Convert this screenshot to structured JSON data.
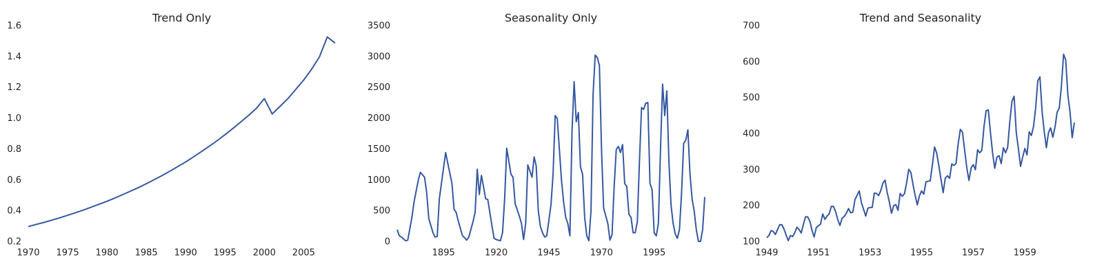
{
  "chart_data": [
    {
      "type": "line",
      "title": "Trend Only",
      "x": [
        1970,
        1971,
        1972,
        1973,
        1974,
        1975,
        1976,
        1977,
        1978,
        1979,
        1980,
        1981,
        1982,
        1983,
        1984,
        1985,
        1986,
        1987,
        1988,
        1989,
        1990,
        1991,
        1992,
        1993,
        1994,
        1995,
        1996,
        1997,
        1998,
        1999,
        2000,
        2001,
        2002,
        2003,
        2004,
        2005,
        2006,
        2007,
        2008,
        2009
      ],
      "values": [
        0.3,
        0.314,
        0.327,
        0.342,
        0.357,
        0.373,
        0.39,
        0.407,
        0.426,
        0.445,
        0.464,
        0.485,
        0.507,
        0.53,
        0.553,
        0.578,
        0.604,
        0.631,
        0.659,
        0.689,
        0.719,
        0.752,
        0.786,
        0.821,
        0.857,
        0.896,
        0.936,
        0.978,
        1.021,
        1.067,
        1.13,
        1.03,
        1.08,
        1.13,
        1.19,
        1.25,
        1.32,
        1.4,
        1.53,
        1.49
      ],
      "color": "#3557a0",
      "xlim": [
        1970,
        2009
      ],
      "xticks": [
        1970,
        1975,
        1980,
        1985,
        1990,
        1995,
        2000,
        2005
      ],
      "ylim": [
        0.2,
        1.6
      ],
      "yticks": [
        0.2,
        0.4,
        0.6,
        0.8,
        {
          "value": 1,
          "label": "1.0"
        },
        1.2,
        1.4,
        1.6
      ]
    },
    {
      "type": "line",
      "title": "Seasonality Only",
      "x": [
        1873,
        1874,
        1875,
        1877,
        1878,
        1880,
        1881,
        1883,
        1884,
        1886,
        1887,
        1888,
        1890,
        1891,
        1892,
        1893,
        1895,
        1896,
        1897,
        1899,
        1900,
        1901,
        1902,
        1904,
        1905,
        1906,
        1907,
        1909,
        1910,
        1911,
        1912,
        1913,
        1915,
        1916,
        1918,
        1919,
        1920,
        1922,
        1923,
        1924,
        1925,
        1927,
        1928,
        1929,
        1931,
        1932,
        1933,
        1934,
        1935,
        1937,
        1938,
        1939,
        1940,
        1941,
        1942,
        1943,
        1944,
        1946,
        1947,
        1948,
        1949,
        1950,
        1951,
        1952,
        1953,
        1954,
        1955,
        1956,
        1957,
        1958,
        1959,
        1960,
        1961,
        1962,
        1963,
        1964,
        1965,
        1966,
        1967,
        1968,
        1969,
        1970,
        1971,
        1973,
        1974,
        1975,
        1976,
        1977,
        1978,
        1979,
        1980,
        1981,
        1982,
        1983,
        1984,
        1985,
        1986,
        1987,
        1988,
        1989,
        1990,
        1991,
        1992,
        1993,
        1994,
        1995,
        1996,
        1997,
        1998,
        1999,
        2000,
        2001,
        2002,
        2003,
        2004,
        2005,
        2006,
        2007,
        2008,
        2009,
        2010,
        2011,
        2012,
        2013,
        2014,
        2015,
        2016,
        2017,
        2018,
        2019
      ],
      "values": [
        200,
        100,
        80,
        20,
        30,
        400,
        650,
        1000,
        1130,
        1050,
        800,
        380,
        150,
        80,
        90,
        700,
        1200,
        1450,
        1280,
        950,
        530,
        480,
        340,
        100,
        70,
        30,
        80,
        330,
        480,
        1180,
        770,
        1080,
        700,
        690,
        260,
        60,
        40,
        20,
        150,
        690,
        1520,
        1100,
        1050,
        620,
        420,
        300,
        40,
        300,
        1250,
        1050,
        1380,
        1230,
        500,
        250,
        150,
        80,
        100,
        600,
        1100,
        2050,
        2000,
        1500,
        1000,
        650,
        400,
        300,
        100,
        1800,
        2600,
        1950,
        2100,
        1220,
        1100,
        400,
        100,
        20,
        500,
        2400,
        3030,
        2990,
        2860,
        1500,
        550,
        300,
        30,
        120,
        900,
        1500,
        1550,
        1450,
        1580,
        950,
        900,
        450,
        400,
        150,
        150,
        330,
        1300,
        2180,
        2150,
        2250,
        2260,
        950,
        850,
        150,
        100,
        300,
        1500,
        2560,
        2050,
        2450,
        1300,
        600,
        300,
        130,
        60,
        200,
        800,
        1600,
        1650,
        1820,
        1100,
        700,
        500,
        200,
        10,
        10,
        200,
        730
      ],
      "color": "#3557a0",
      "xlim": [
        1873,
        2019
      ],
      "xticks": [
        1895,
        1920,
        1945,
        1970,
        1995
      ],
      "ylim": [
        0,
        3500
      ],
      "yticks": [
        0,
        500,
        1000,
        1500,
        2000,
        2500,
        3000,
        3500
      ]
    },
    {
      "type": "line",
      "title": "Trend and Seasonality",
      "x": [
        1949,
        1949.083,
        1949.167,
        1949.25,
        1949.333,
        1949.417,
        1949.5,
        1949.583,
        1949.667,
        1949.75,
        1949.833,
        1949.917,
        1950,
        1950.083,
        1950.167,
        1950.25,
        1950.333,
        1950.417,
        1950.5,
        1950.583,
        1950.667,
        1950.75,
        1950.833,
        1950.917,
        1951,
        1951.083,
        1951.167,
        1951.25,
        1951.333,
        1951.417,
        1951.5,
        1951.583,
        1951.667,
        1951.75,
        1951.833,
        1951.917,
        1952,
        1952.083,
        1952.167,
        1952.25,
        1952.333,
        1952.417,
        1952.5,
        1952.583,
        1952.667,
        1952.75,
        1952.833,
        1952.917,
        1953,
        1953.083,
        1953.167,
        1953.25,
        1953.333,
        1953.417,
        1953.5,
        1953.583,
        1953.667,
        1953.75,
        1953.833,
        1953.917,
        1954,
        1954.083,
        1954.167,
        1954.25,
        1954.333,
        1954.417,
        1954.5,
        1954.583,
        1954.667,
        1954.75,
        1954.833,
        1954.917,
        1955,
        1955.083,
        1955.167,
        1955.25,
        1955.333,
        1955.417,
        1955.5,
        1955.583,
        1955.667,
        1955.75,
        1955.833,
        1955.917,
        1956,
        1956.083,
        1956.167,
        1956.25,
        1956.333,
        1956.417,
        1956.5,
        1956.583,
        1956.667,
        1956.75,
        1956.833,
        1956.917,
        1957,
        1957.083,
        1957.167,
        1957.25,
        1957.333,
        1957.417,
        1957.5,
        1957.583,
        1957.667,
        1957.75,
        1957.833,
        1957.917,
        1958,
        1958.083,
        1958.167,
        1958.25,
        1958.333,
        1958.417,
        1958.5,
        1958.583,
        1958.667,
        1958.75,
        1958.833,
        1958.917,
        1959,
        1959.083,
        1959.167,
        1959.25,
        1959.333,
        1959.417,
        1959.5,
        1959.583,
        1959.667,
        1959.75,
        1959.833,
        1959.917,
        1960,
        1960.083,
        1960.167,
        1960.25,
        1960.333,
        1960.417,
        1960.5,
        1960.583,
        1960.667,
        1960.75,
        1960.833,
        1960.917
      ],
      "values": [
        112,
        118,
        132,
        129,
        121,
        135,
        148,
        148,
        136,
        119,
        104,
        118,
        115,
        126,
        141,
        135,
        125,
        149,
        170,
        170,
        158,
        133,
        114,
        140,
        145,
        150,
        178,
        163,
        172,
        178,
        199,
        199,
        184,
        162,
        146,
        166,
        171,
        180,
        193,
        181,
        183,
        218,
        230,
        242,
        209,
        191,
        172,
        194,
        196,
        196,
        236,
        235,
        229,
        243,
        264,
        272,
        237,
        211,
        180,
        201,
        204,
        188,
        235,
        227,
        234,
        264,
        302,
        293,
        259,
        229,
        203,
        229,
        242,
        233,
        267,
        269,
        270,
        315,
        364,
        347,
        312,
        274,
        237,
        278,
        284,
        277,
        317,
        313,
        318,
        374,
        413,
        405,
        355,
        306,
        271,
        306,
        315,
        301,
        356,
        348,
        355,
        422,
        465,
        467,
        404,
        347,
        305,
        336,
        340,
        318,
        362,
        348,
        363,
        435,
        491,
        505,
        404,
        359,
        310,
        337,
        360,
        342,
        406,
        396,
        420,
        472,
        548,
        559,
        463,
        407,
        362,
        405,
        417,
        391,
        419,
        461,
        472,
        535,
        622,
        606,
        508,
        461,
        390,
        432
      ],
      "color": "#3557a0",
      "xlim": [
        1949,
        1960.917
      ],
      "xticks": [
        1949,
        1951,
        1953,
        1955,
        1957,
        1959
      ],
      "ylim": [
        100,
        700
      ],
      "yticks": [
        100,
        200,
        300,
        400,
        500,
        600,
        700
      ]
    }
  ]
}
